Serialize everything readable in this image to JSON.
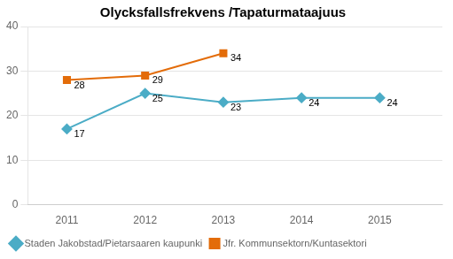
{
  "chart_data": {
    "type": "line",
    "title": "Olycksfallsfrekvens /Tapaturmataajuus",
    "x": [
      2011,
      2012,
      2013,
      2014,
      2015
    ],
    "series": [
      {
        "name": "Staden Jakobstad/Pietarsaaren kaupunki",
        "color": "#4BACC6",
        "marker": "diamond",
        "values": [
          17,
          25,
          23,
          24,
          24
        ]
      },
      {
        "name": "Jfr. Kommunsektorn/Kuntasektori",
        "color": "#E36C09",
        "marker": "square",
        "values": [
          28,
          29,
          34,
          null,
          null
        ]
      }
    ],
    "xlim": [
      2010.5,
      2015.8
    ],
    "xticks": [
      2011,
      2012,
      2013,
      2014,
      2015
    ],
    "ylim": [
      0,
      40
    ],
    "yticks": [
      0,
      10,
      20,
      30,
      40
    ],
    "grid": "y",
    "legend": "bottom",
    "data_labels": true
  }
}
